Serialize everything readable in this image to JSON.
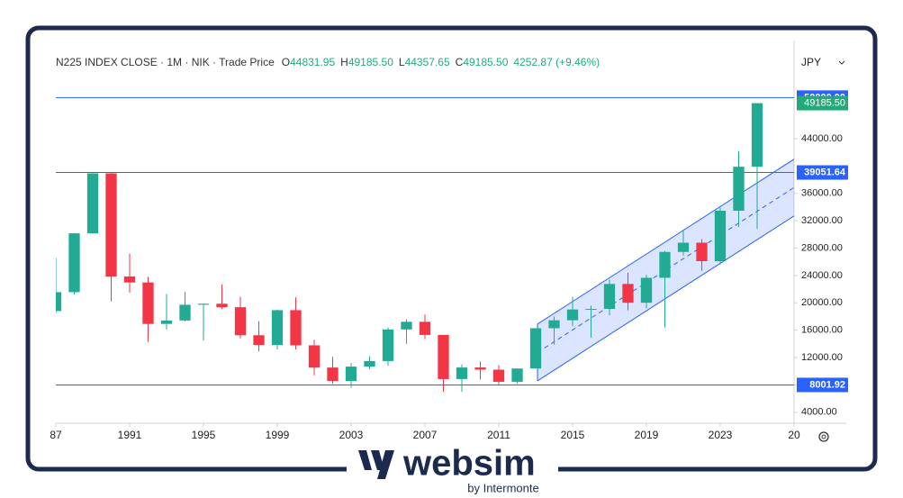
{
  "chart_data": {
    "type": "candlestick",
    "legend": {
      "symbol": "N225 INDEX CLOSE · 1M · NIK · Trade Price",
      "items": [
        {
          "key": "O",
          "value": "44831.95"
        },
        {
          "key": "H",
          "value": "49185.50"
        },
        {
          "key": "L",
          "value": "44357.65"
        },
        {
          "key": "C",
          "value": "49185.50"
        }
      ],
      "change": "4252.87 (+9.46%)"
    },
    "currency": "JPY",
    "x": [
      1987,
      1988,
      1989,
      1990,
      1991,
      1992,
      1993,
      1994,
      1995,
      1996,
      1997,
      1998,
      1999,
      2000,
      2001,
      2002,
      2003,
      2004,
      2005,
      2006,
      2007,
      2008,
      2009,
      2010,
      2011,
      2012,
      2013,
      2014,
      2015,
      2016,
      2017,
      2018,
      2019,
      2020,
      2021,
      2022,
      2023,
      2024,
      2025
    ],
    "open": [
      18800,
      21560,
      30160,
      38920,
      23850,
      22980,
      16920,
      17420,
      19720,
      19870,
      19360,
      15260,
      13840,
      18930,
      13790,
      10540,
      8580,
      10680,
      11490,
      16110,
      17230,
      15310,
      8860,
      10550,
      10230,
      8460,
      10400,
      16290,
      17450,
      19030,
      19110,
      22760,
      20010,
      23660,
      27440,
      28790,
      26090,
      33460,
      39890
    ],
    "high": [
      26600,
      30200,
      38960,
      38950,
      27200,
      23800,
      21300,
      21600,
      19800,
      22700,
      20900,
      17300,
      19000,
      20800,
      14600,
      12100,
      11200,
      12200,
      16400,
      17600,
      18300,
      15300,
      11000,
      11400,
      10900,
      10400,
      16300,
      18000,
      20900,
      19600,
      23400,
      24400,
      24100,
      27600,
      30700,
      29300,
      33900,
      42200,
      49185.5
    ],
    "low": [
      18500,
      21200,
      30100,
      20200,
      21500,
      14300,
      16100,
      17300,
      14500,
      19100,
      14800,
      12900,
      13200,
      13200,
      9400,
      8200,
      7600,
      10300,
      10800,
      14000,
      14700,
      7000,
      7000,
      8800,
      8100,
      8200,
      10400,
      13900,
      16600,
      14900,
      18200,
      18900,
      19200,
      16400,
      26900,
      24700,
      25600,
      31100,
      30800
    ],
    "close": [
      21560,
      30160,
      38920,
      23850,
      22980,
      16920,
      17420,
      19720,
      19870,
      19360,
      15260,
      13840,
      18930,
      13790,
      10540,
      8580,
      10680,
      11490,
      16110,
      17230,
      15310,
      8860,
      10550,
      10230,
      8460,
      10400,
      16290,
      17450,
      19030,
      19110,
      22760,
      20010,
      23660,
      27440,
      28790,
      26090,
      33460,
      39890,
      49185.5
    ],
    "up_color": "#22ab94",
    "down_color": "#f23645",
    "xlim": [
      1987,
      2027
    ],
    "xticks": [
      {
        "value": 1987,
        "label": "87"
      },
      1991,
      1995,
      1999,
      2003,
      2007,
      2011,
      2015,
      2019,
      2023,
      {
        "value": 2027,
        "label": "20"
      }
    ],
    "ylim": [
      2400,
      56100
    ],
    "yticks": [
      {
        "value": 4000,
        "label": "4000.00"
      },
      {
        "value": 8000,
        "label": "8000.00"
      },
      {
        "value": 12000,
        "label": "12000.00"
      },
      {
        "value": 16000,
        "label": "16000.00"
      },
      {
        "value": 20000,
        "label": "20000.00"
      },
      {
        "value": 24000,
        "label": "24000.00"
      },
      {
        "value": 28000,
        "label": "28000.00"
      },
      {
        "value": 32000,
        "label": "32000.00"
      },
      {
        "value": 36000,
        "label": "36000.00"
      },
      {
        "value": 44000,
        "label": "44000.00"
      }
    ],
    "levels": [
      {
        "value": 50000,
        "label": "50000.00"
      },
      {
        "value": 39051.64,
        "label": "39051.64"
      },
      {
        "value": 8001.92,
        "label": "8001.92"
      }
    ],
    "level_color": "#2962ff",
    "last_price": {
      "value": 49185.5,
      "label": "49185.50"
    },
    "channel": {
      "x": [
        2013.1,
        2027
      ],
      "lower": [
        8600,
        32700
      ],
      "upper": [
        16900,
        41000
      ]
    }
  },
  "branding": {
    "name": "websim",
    "tagline": "by Intermonte"
  }
}
